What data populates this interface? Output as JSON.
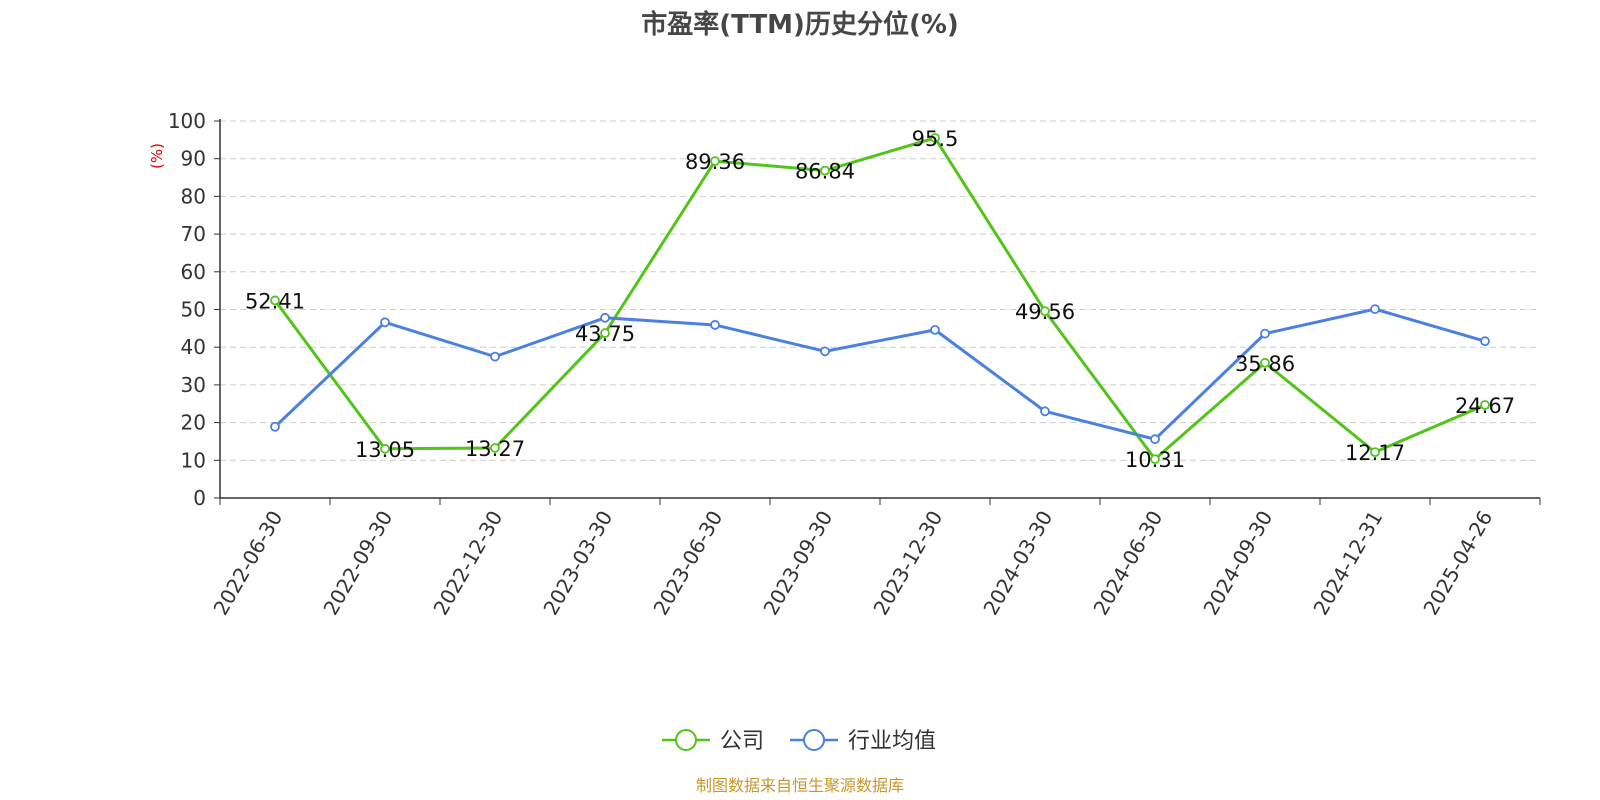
{
  "chart_data": {
    "type": "line",
    "title": "市盈率(TTM)历史分位(%)",
    "ylabel": "(%)",
    "ylim": [
      0,
      100
    ],
    "yticks": [
      0,
      10,
      20,
      30,
      40,
      50,
      60,
      70,
      80,
      90,
      100
    ],
    "grid": true,
    "legend_position": "bottom-center",
    "categories": [
      "2022-06-30",
      "2022-09-30",
      "2022-12-30",
      "2023-03-30",
      "2023-06-30",
      "2023-09-30",
      "2023-12-30",
      "2024-03-30",
      "2024-06-30",
      "2024-09-30",
      "2024-12-31",
      "2025-04-26"
    ],
    "series": [
      {
        "name": "公司",
        "color": "#52c41a",
        "show_labels": true,
        "values": [
          52.41,
          13.05,
          13.27,
          43.75,
          89.36,
          86.84,
          95.5,
          49.56,
          10.31,
          35.86,
          12.17,
          24.67
        ]
      },
      {
        "name": "行业均值",
        "color": "#4a80e0",
        "show_labels": false,
        "values": [
          18.9,
          46.6,
          37.5,
          47.8,
          45.9,
          38.9,
          44.6,
          23.0,
          15.6,
          43.6,
          50.1,
          41.6
        ]
      }
    ],
    "source": "制图数据来自恒生聚源数据库"
  },
  "colors": {
    "title": "#464646",
    "ylabel": "#e00000",
    "grid": "#cccccc",
    "axis": "#333333",
    "source": "#c8962d"
  }
}
